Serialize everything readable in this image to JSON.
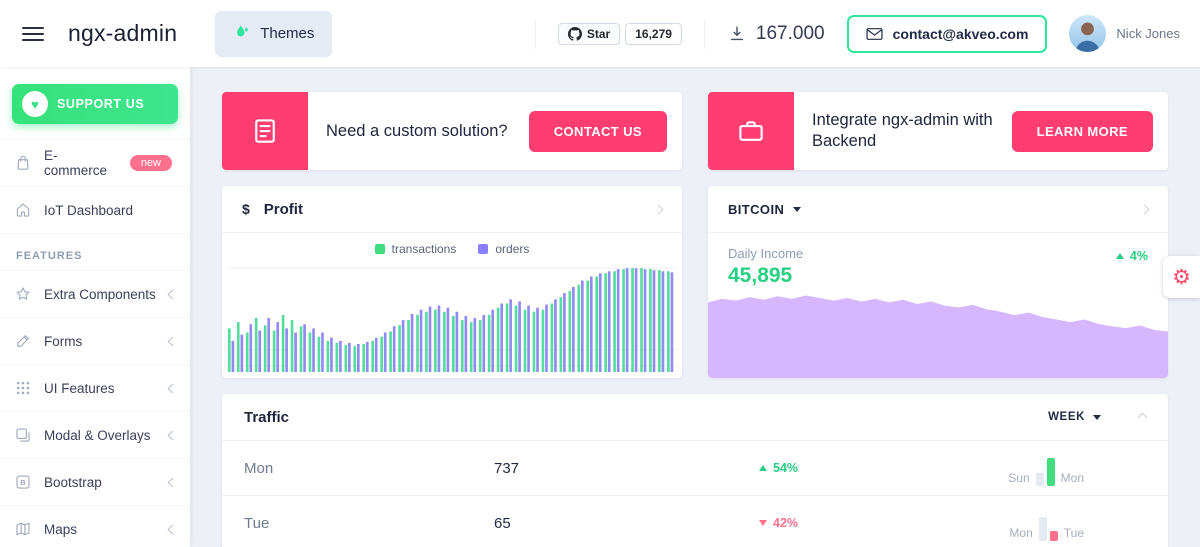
{
  "colors": {
    "pink": "#ff3d71",
    "badge_pink": "#ff708d",
    "green": "#40dc7e",
    "bright_green": "#2ce69b",
    "purple": "#8a7fff",
    "area_purple": "#d6b6fe",
    "gray_bar": "#e4e9f2",
    "background": "#edf1f7"
  },
  "header": {
    "logo": "ngx-admin",
    "themes_label": "Themes",
    "github_star_label": "Star",
    "github_star_count": "16,279",
    "downloads_count": "167.000",
    "contact_email": "contact@akveo.com",
    "user_name": "Nick Jones"
  },
  "sidebar": {
    "support_label": "SUPPORT US",
    "features_section": "FEATURES",
    "items": [
      {
        "label": "E-commerce",
        "badge": "new"
      },
      {
        "label": "IoT Dashboard"
      },
      {
        "label": "Extra Components"
      },
      {
        "label": "Forms"
      },
      {
        "label": "UI Features"
      },
      {
        "label": "Modal & Overlays"
      },
      {
        "label": "Bootstrap"
      },
      {
        "label": "Maps"
      }
    ]
  },
  "banners": [
    {
      "title": "Need a custom solution?",
      "button": "CONTACT US"
    },
    {
      "title": "Integrate ngx-admin with Backend",
      "button": "LEARN MORE"
    }
  ],
  "profit": {
    "currency": "$",
    "title": "Profit",
    "legend": [
      "transactions",
      "orders"
    ]
  },
  "bitcoin": {
    "title": "BITCOIN",
    "income_label": "Daily Income",
    "income_value": "45,895",
    "delta": "4%"
  },
  "traffic": {
    "title": "Traffic",
    "period": "WEEK",
    "rows": [
      {
        "day": "Mon",
        "value": "737",
        "delta": "54%",
        "direction": "up",
        "label_left": "Sun",
        "label_right": "Mon"
      },
      {
        "day": "Tue",
        "value": "65",
        "delta": "42%",
        "direction": "down",
        "label_left": "Mon",
        "label_right": "Tue"
      }
    ]
  },
  "chart_data": [
    {
      "type": "bar",
      "title": "Profit",
      "ylim": [
        0,
        100
      ],
      "legend_position": "top",
      "series": [
        {
          "name": "transactions",
          "color": "#55dd9d",
          "values": [
            42,
            48,
            38,
            52,
            45,
            40,
            55,
            50,
            44,
            38,
            34,
            30,
            28,
            26,
            25,
            27,
            30,
            34,
            39,
            45,
            50,
            55,
            58,
            60,
            58,
            54,
            50,
            48,
            50,
            55,
            62,
            66,
            64,
            60,
            58,
            60,
            66,
            72,
            78,
            84,
            88,
            92,
            95,
            97,
            99,
            100,
            100,
            99,
            98,
            97
          ]
        },
        {
          "name": "orders",
          "color": "#9289f2",
          "values": [
            30,
            36,
            46,
            40,
            52,
            48,
            42,
            38,
            46,
            42,
            38,
            33,
            30,
            28,
            27,
            29,
            33,
            38,
            44,
            50,
            56,
            60,
            63,
            64,
            62,
            58,
            54,
            52,
            55,
            60,
            66,
            70,
            68,
            64,
            62,
            65,
            70,
            76,
            82,
            88,
            92,
            95,
            97,
            99,
            100,
            100,
            99,
            98,
            97,
            96
          ]
        }
      ]
    },
    {
      "type": "area",
      "title": "Bitcoin Daily Income",
      "color": "#d6b6fe",
      "ylim": [
        0,
        100
      ],
      "values": [
        88,
        92,
        90,
        94,
        91,
        95,
        92,
        96,
        93,
        90,
        93,
        89,
        92,
        88,
        91,
        86,
        89,
        84,
        82,
        85,
        80,
        77,
        73,
        76,
        71,
        68,
        65,
        68,
        63,
        60,
        58,
        61,
        56,
        54
      ]
    },
    {
      "type": "bar",
      "title": "Traffic Mon vs Sun",
      "categories": [
        "Sun",
        "Mon"
      ],
      "values": [
        38,
        82
      ],
      "colors": [
        "#e4e9f2",
        "#40dc7e"
      ]
    },
    {
      "type": "bar",
      "title": "Traffic Tue vs Mon",
      "categories": [
        "Mon",
        "Tue"
      ],
      "values": [
        72,
        30
      ],
      "colors": [
        "#e4e9f2",
        "#ff708d"
      ]
    }
  ]
}
